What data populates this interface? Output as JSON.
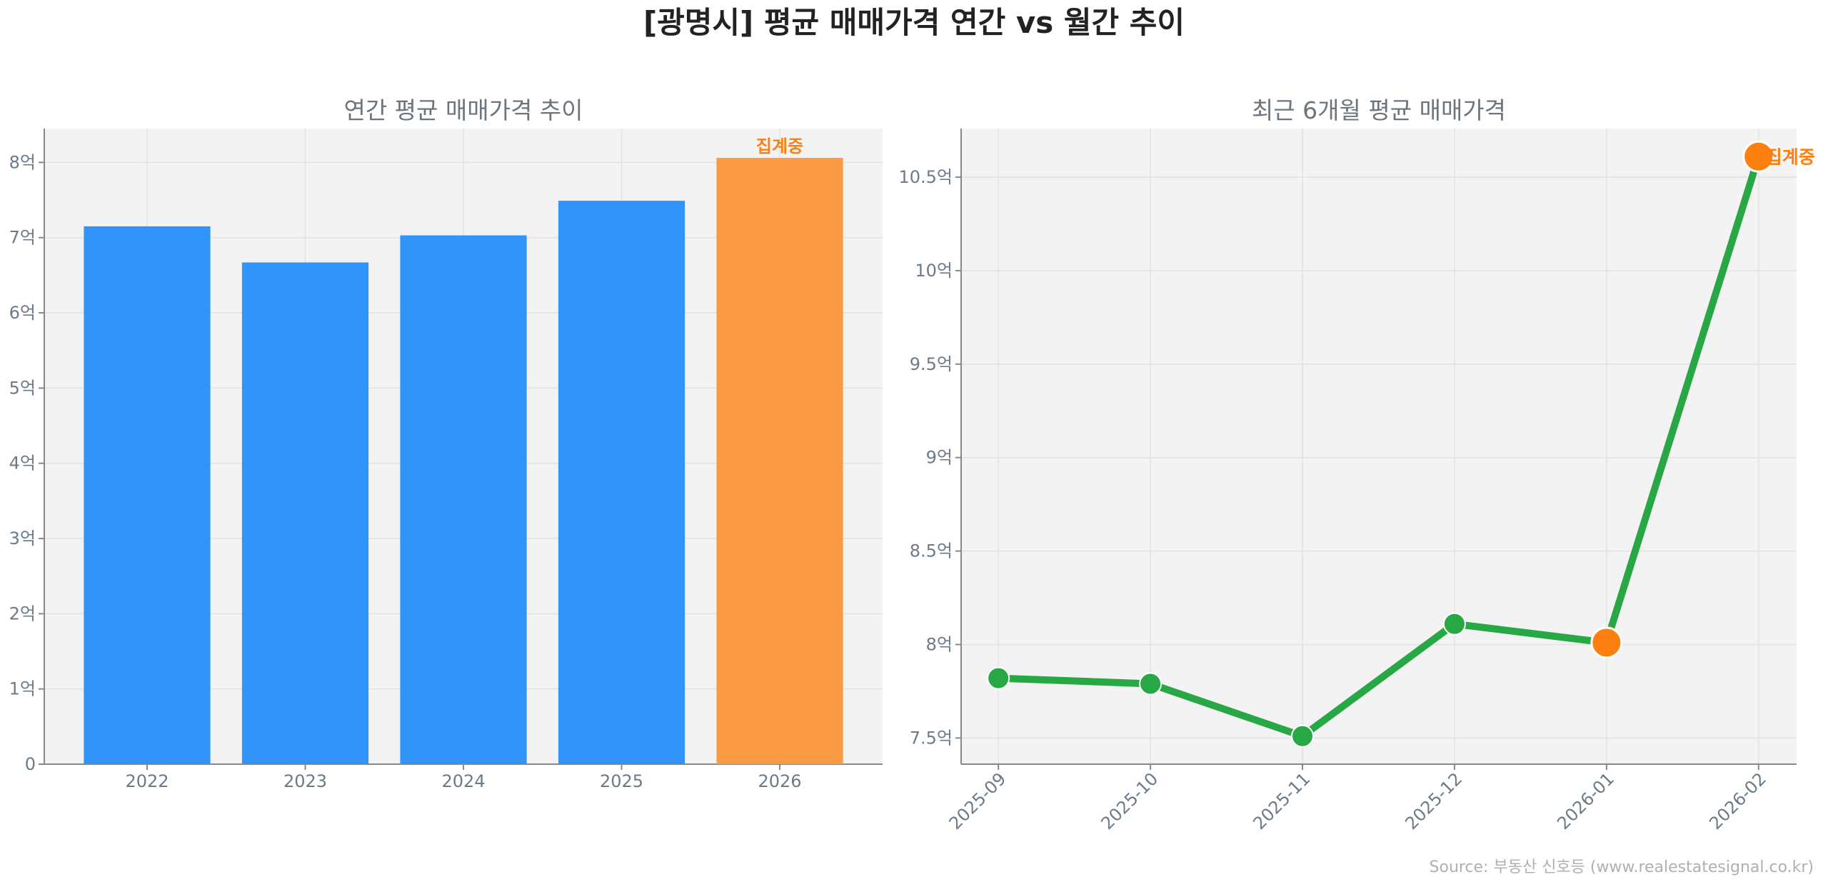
{
  "title": "[광명시] 평균 매매가격 연간 vs 월간 추이",
  "source": "Source: 부동산 신호등 (www.realestatesignal.co.kr)",
  "colors": {
    "bar": "#3194fb",
    "bar_highlight": "#fa9a42",
    "line": "#28a745",
    "marker_highlight": "#fd7f0f",
    "plot_bg": "#f3f3f3",
    "annotation": "#fd7f0f"
  },
  "chart_data": [
    {
      "type": "bar",
      "title": "연간 평균 매매가격 추이",
      "categories": [
        "2022",
        "2023",
        "2024",
        "2025",
        "2026"
      ],
      "values": [
        7.15,
        6.67,
        7.03,
        7.49,
        8.06
      ],
      "highlight_index": 4,
      "annotation": "집계중",
      "ylim": [
        0,
        8.45
      ],
      "yticks": [
        0,
        1,
        2,
        3,
        4,
        5,
        6,
        7,
        8
      ],
      "ytick_labels": [
        "0",
        "1억",
        "2억",
        "3억",
        "4억",
        "5억",
        "6억",
        "7억",
        "8억"
      ],
      "grid": true
    },
    {
      "type": "line",
      "title": "최근 6개월 평균 매매가격",
      "categories": [
        "2025-09",
        "2025-10",
        "2025-11",
        "2025-12",
        "2026-01",
        "2026-02"
      ],
      "values": [
        7.82,
        7.79,
        7.51,
        8.11,
        8.01,
        10.61
      ],
      "highlight_indices": [
        4,
        5
      ],
      "annotation": "집계중",
      "ylim": [
        7.36,
        10.76
      ],
      "yticks": [
        7.5,
        8,
        8.5,
        9,
        9.5,
        10,
        10.5
      ],
      "ytick_labels": [
        "7.5억",
        "8억",
        "8.5억",
        "9억",
        "9.5억",
        "10억",
        "10.5억"
      ],
      "grid": true
    }
  ]
}
